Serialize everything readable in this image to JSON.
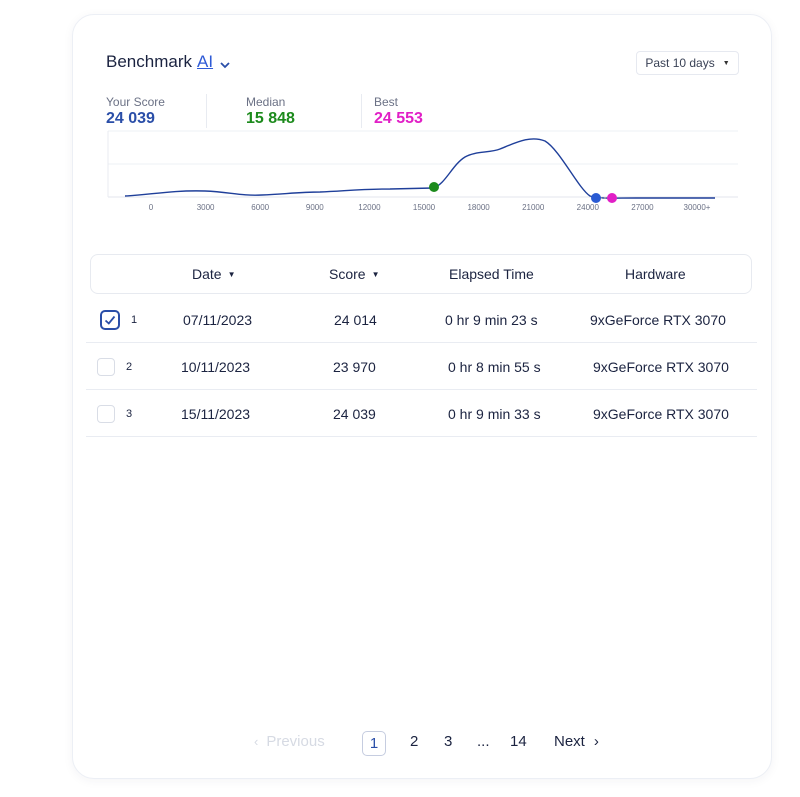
{
  "header": {
    "title": "Benchmark",
    "title_link": "AI",
    "period_label": "Past 10 days"
  },
  "stats": [
    {
      "label": "Your Score",
      "value": "24 039",
      "color": "#2a4ea8"
    },
    {
      "label": "Median",
      "value": "15 848",
      "color": "#1c8a1c"
    },
    {
      "label": "Best",
      "value": "24 553",
      "color": "#e11fc6"
    }
  ],
  "chart_data": {
    "type": "line",
    "x_ticks": [
      "0",
      "3000",
      "6000",
      "9000",
      "12000",
      "15000",
      "18000",
      "21000",
      "24000",
      "27000",
      "30000+"
    ],
    "markers": [
      {
        "name": "Median",
        "x": 15848,
        "color": "#1c8a1c"
      },
      {
        "name": "Your Score",
        "x": 24039,
        "color": "#2a5bd3"
      },
      {
        "name": "Best",
        "x": 24553,
        "color": "#e11fc6"
      }
    ],
    "line_color": "#1f3f9a",
    "grid": true
  },
  "table": {
    "columns": [
      {
        "label": "Date",
        "sortable": true
      },
      {
        "label": "Score",
        "sortable": true
      },
      {
        "label": "Elapsed Time",
        "sortable": false
      },
      {
        "label": "Hardware",
        "sortable": false
      }
    ],
    "rows": [
      {
        "index": "1",
        "checked": true,
        "date": "07/11/2023",
        "score": "24 014",
        "elapsed": "0 hr 9 min 23 s",
        "hardware": "9xGeForce RTX 3070"
      },
      {
        "index": "2",
        "checked": false,
        "date": "10/11/2023",
        "score": "23 970",
        "elapsed": "0 hr 8 min 55 s",
        "hardware": "9xGeForce RTX 3070"
      },
      {
        "index": "3",
        "checked": false,
        "date": "15/11/2023",
        "score": "24 039",
        "elapsed": "0 hr 9 min 33 s",
        "hardware": "9xGeForce RTX 3070"
      }
    ]
  },
  "pagination": {
    "previous_label": "Previous",
    "pages": [
      "1",
      "2",
      "3",
      "...",
      "14"
    ],
    "active_page": "1",
    "next_label": "Next"
  }
}
